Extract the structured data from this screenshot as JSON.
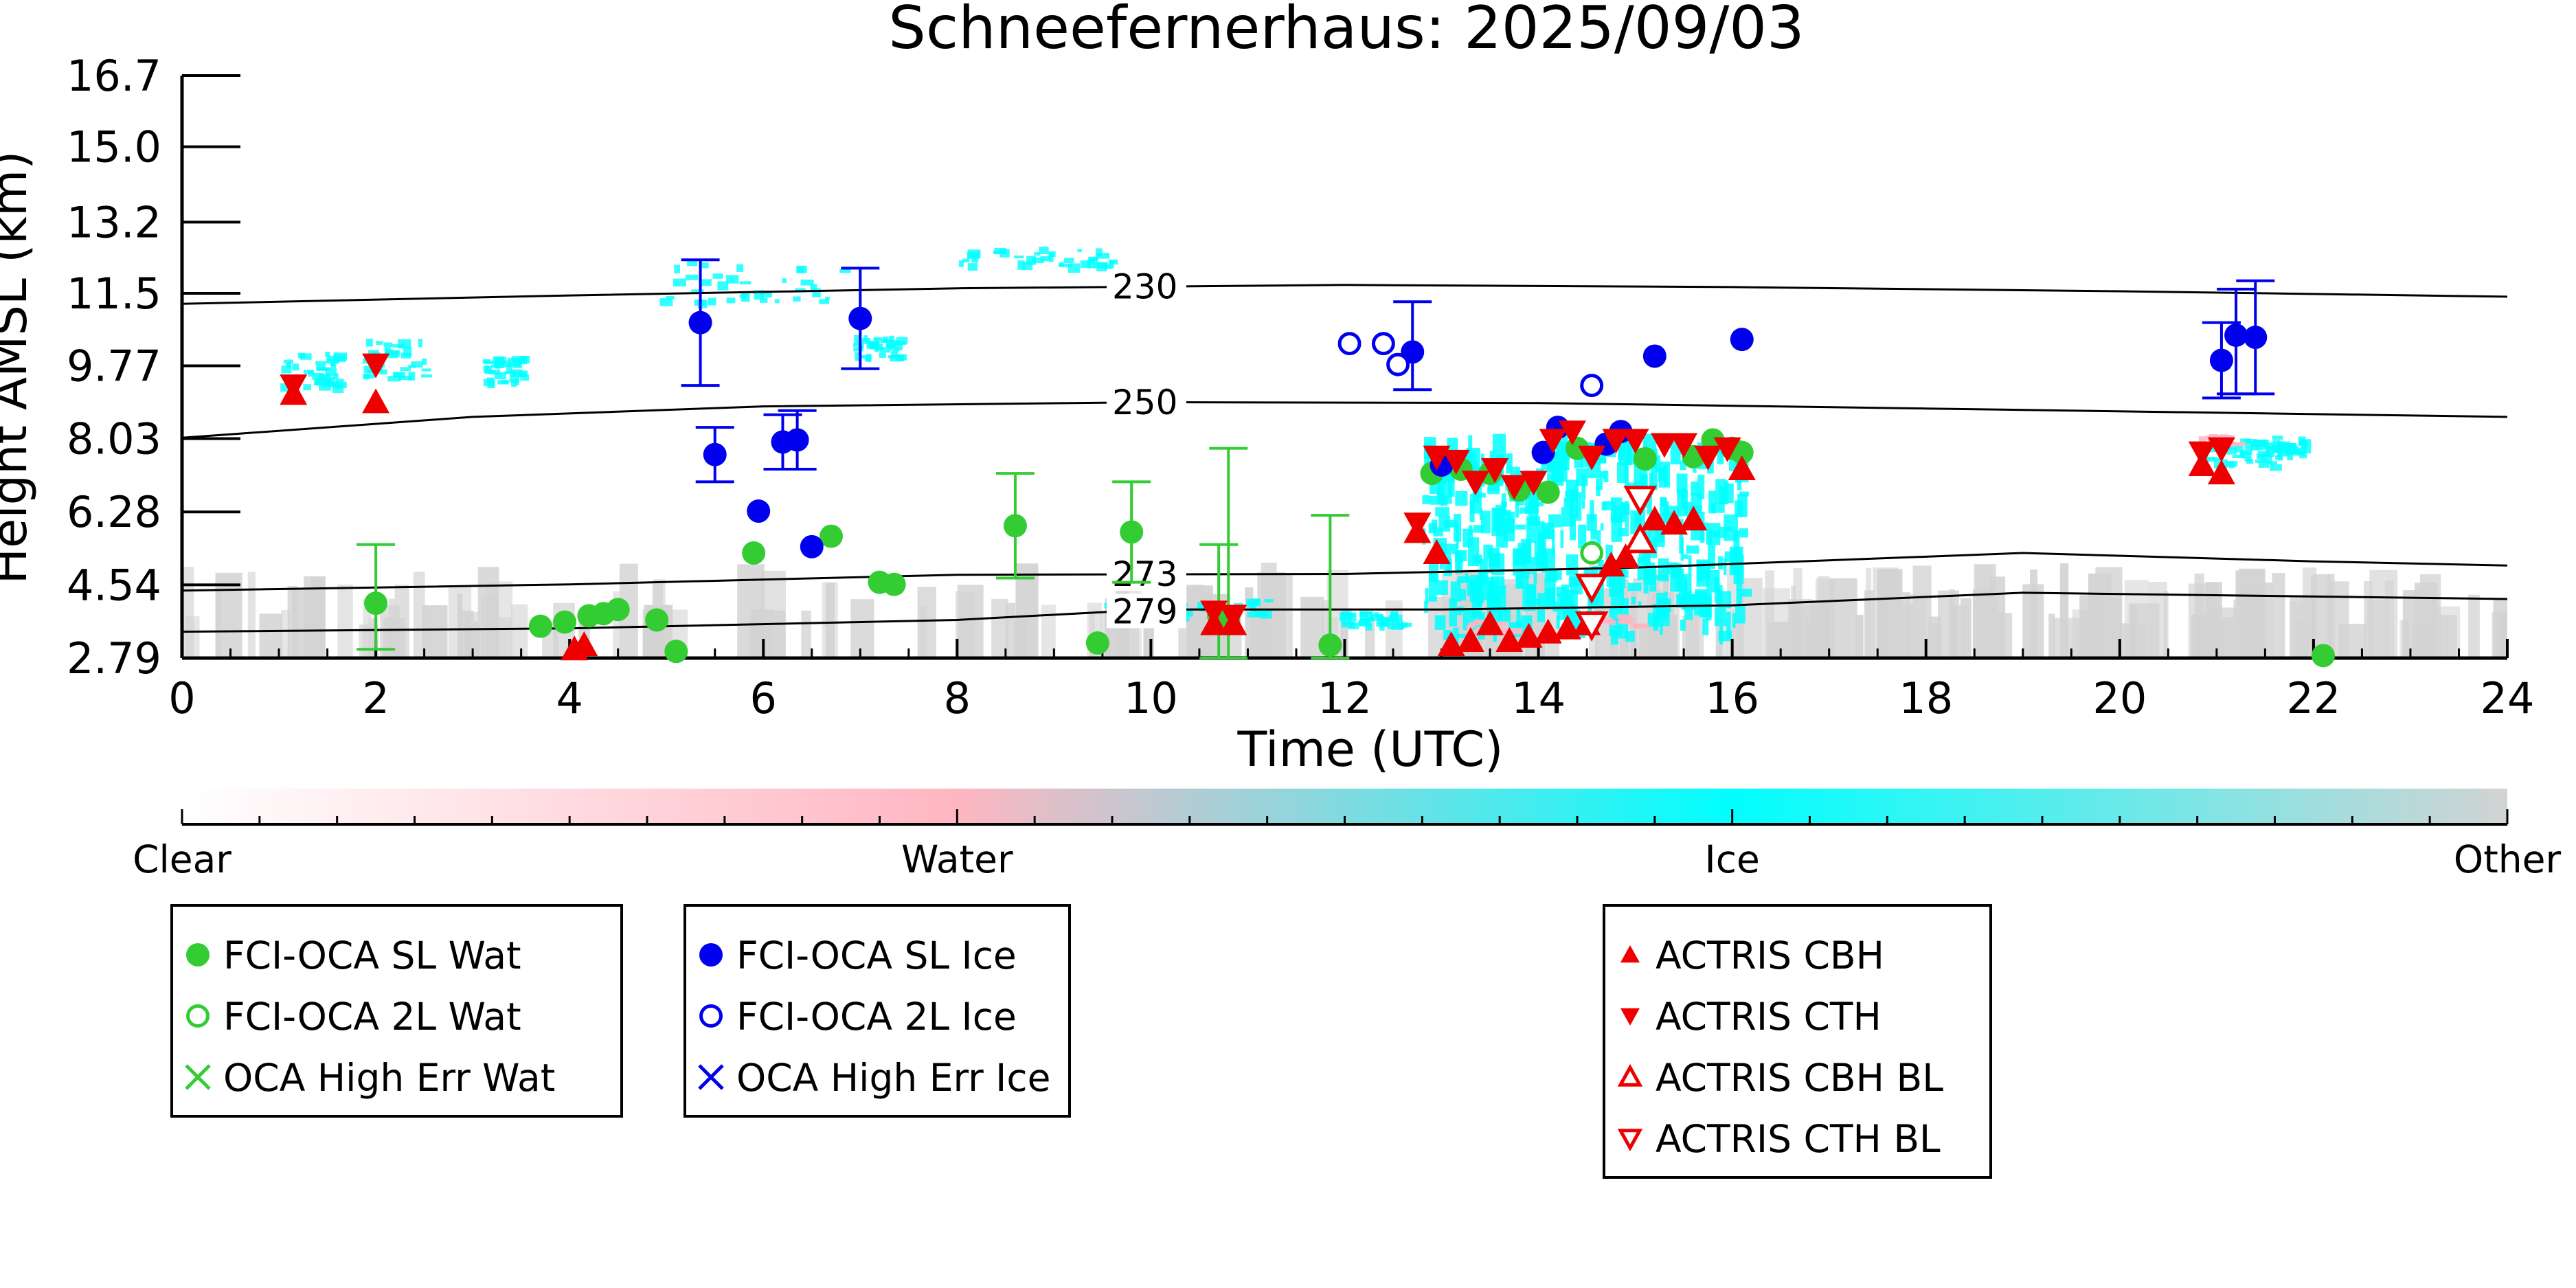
{
  "chart_data": {
    "type": "scatter",
    "title": "Schneefernerhaus: 2025/09/03",
    "xlabel": "Time (UTC)",
    "ylabel": "Height AMSL (km)",
    "xlim": [
      0,
      24
    ],
    "ylim": [
      2.79,
      16.7
    ],
    "x_ticks": [
      "0",
      "2",
      "4",
      "6",
      "8",
      "10",
      "12",
      "14",
      "16",
      "18",
      "20",
      "22",
      "24"
    ],
    "y_ticks": [
      "2.79",
      "4.54",
      "6.28",
      "8.03",
      "9.77",
      "11.5",
      "13.2",
      "15.0",
      "16.7"
    ],
    "y_tick_values": [
      2.79,
      4.54,
      6.28,
      8.03,
      9.77,
      11.5,
      13.2,
      15.0,
      16.7
    ],
    "colorbar": {
      "labels": [
        "Clear",
        "Water",
        "Ice",
        "Other"
      ],
      "colors": [
        "#ffffff",
        "#ffb6c1",
        "#00ffff",
        "#d3d3d3"
      ]
    },
    "isotherms": [
      {
        "label": "230",
        "label_x": 9.6,
        "points": [
          [
            0,
            11.25
          ],
          [
            4,
            11.45
          ],
          [
            8,
            11.62
          ],
          [
            12,
            11.7
          ],
          [
            16,
            11.65
          ],
          [
            20,
            11.55
          ],
          [
            24,
            11.42
          ]
        ]
      },
      {
        "label": "250",
        "label_x": 9.6,
        "points": [
          [
            0,
            8.05
          ],
          [
            3,
            8.55
          ],
          [
            6,
            8.8
          ],
          [
            10,
            8.9
          ],
          [
            14,
            8.88
          ],
          [
            18,
            8.75
          ],
          [
            24,
            8.55
          ]
        ]
      },
      {
        "label": "273",
        "label_x": 9.6,
        "points": [
          [
            0,
            4.4
          ],
          [
            4,
            4.55
          ],
          [
            8,
            4.78
          ],
          [
            12,
            4.8
          ],
          [
            15,
            4.95
          ],
          [
            19,
            5.3
          ],
          [
            22,
            5.1
          ],
          [
            24,
            5.0
          ]
        ]
      },
      {
        "label": "279",
        "label_x": 9.6,
        "points": [
          [
            0,
            3.42
          ],
          [
            4,
            3.5
          ],
          [
            8,
            3.7
          ],
          [
            10,
            3.95
          ],
          [
            13,
            3.95
          ],
          [
            16,
            4.05
          ],
          [
            19,
            4.35
          ],
          [
            24,
            4.2
          ]
        ]
      }
    ],
    "series": [
      {
        "name": "FCI-OCA SL Wat",
        "color": "#33cc33",
        "marker": "circle-filled",
        "points": [
          {
            "x": 2.0,
            "y": 4.1,
            "lo": 3.0,
            "hi": 5.5
          },
          {
            "x": 3.7,
            "y": 3.55
          },
          {
            "x": 3.95,
            "y": 3.65
          },
          {
            "x": 4.2,
            "y": 3.8
          },
          {
            "x": 4.35,
            "y": 3.85
          },
          {
            "x": 4.5,
            "y": 3.95
          },
          {
            "x": 4.9,
            "y": 3.7
          },
          {
            "x": 5.1,
            "y": 2.95
          },
          {
            "x": 5.9,
            "y": 5.3
          },
          {
            "x": 6.7,
            "y": 5.7
          },
          {
            "x": 7.2,
            "y": 4.6
          },
          {
            "x": 7.35,
            "y": 4.55
          },
          {
            "x": 8.6,
            "y": 5.95,
            "lo": 4.7,
            "hi": 7.2
          },
          {
            "x": 9.45,
            "y": 3.15
          },
          {
            "x": 9.8,
            "y": 5.8,
            "lo": 4.6,
            "hi": 7.0
          },
          {
            "x": 10.7,
            "y": 3.8,
            "lo": 2.79,
            "hi": 5.5
          },
          {
            "x": 10.8,
            "y": 3.7,
            "lo": 2.79,
            "hi": 7.8
          },
          {
            "x": 11.85,
            "y": 3.1,
            "lo": 2.79,
            "hi": 6.2
          },
          {
            "x": 12.9,
            "y": 7.2
          },
          {
            "x": 13.2,
            "y": 7.3
          },
          {
            "x": 13.5,
            "y": 7.2
          },
          {
            "x": 13.8,
            "y": 6.8
          },
          {
            "x": 14.1,
            "y": 6.75
          },
          {
            "x": 14.4,
            "y": 7.8
          },
          {
            "x": 15.1,
            "y": 7.55
          },
          {
            "x": 15.6,
            "y": 7.6
          },
          {
            "x": 15.8,
            "y": 8.0
          },
          {
            "x": 16.0,
            "y": 7.8
          },
          {
            "x": 16.1,
            "y": 7.7
          },
          {
            "x": 22.1,
            "y": 2.85
          }
        ]
      },
      {
        "name": "FCI-OCA 2L Wat",
        "color": "#33cc33",
        "marker": "circle-open",
        "points": [
          {
            "x": 14.55,
            "y": 5.3
          }
        ]
      },
      {
        "name": "OCA High Err Wat",
        "color": "#33cc33",
        "marker": "x",
        "points": []
      },
      {
        "name": "FCI-OCA SL Ice",
        "color": "#0000ee",
        "marker": "circle-filled",
        "points": [
          {
            "x": 5.35,
            "y": 10.8,
            "lo": 9.3,
            "hi": 12.3
          },
          {
            "x": 5.5,
            "y": 7.65,
            "lo": 7.0,
            "hi": 8.3
          },
          {
            "x": 5.95,
            "y": 6.3
          },
          {
            "x": 6.2,
            "y": 7.95,
            "lo": 7.3,
            "hi": 8.6
          },
          {
            "x": 6.35,
            "y": 8.0,
            "lo": 7.3,
            "hi": 8.7
          },
          {
            "x": 6.5,
            "y": 5.45
          },
          {
            "x": 7.0,
            "y": 10.9,
            "lo": 9.7,
            "hi": 12.1
          },
          {
            "x": 12.7,
            "y": 10.1,
            "lo": 9.2,
            "hi": 11.3
          },
          {
            "x": 13.0,
            "y": 7.4
          },
          {
            "x": 14.05,
            "y": 7.7
          },
          {
            "x": 14.2,
            "y": 8.3
          },
          {
            "x": 14.7,
            "y": 7.9
          },
          {
            "x": 14.85,
            "y": 8.2
          },
          {
            "x": 15.2,
            "y": 10.0
          },
          {
            "x": 16.1,
            "y": 10.4
          },
          {
            "x": 21.05,
            "y": 9.9,
            "lo": 9.0,
            "hi": 10.8
          },
          {
            "x": 21.2,
            "y": 10.5,
            "lo": 9.1,
            "hi": 11.6
          },
          {
            "x": 21.4,
            "y": 10.45,
            "lo": 9.1,
            "hi": 11.8
          }
        ]
      },
      {
        "name": "FCI-OCA 2L Ice",
        "color": "#0000ee",
        "marker": "circle-open",
        "points": [
          {
            "x": 12.05,
            "y": 10.3
          },
          {
            "x": 12.4,
            "y": 10.3
          },
          {
            "x": 12.55,
            "y": 9.8
          },
          {
            "x": 14.55,
            "y": 9.3
          }
        ]
      },
      {
        "name": "OCA High Err Ice",
        "color": "#0000ee",
        "marker": "x",
        "points": []
      },
      {
        "name": "ACTRIS CBH",
        "color": "#ee0000",
        "marker": "triangle-up-filled",
        "points": [
          {
            "x": 1.15,
            "y": 9.1
          },
          {
            "x": 2.0,
            "y": 8.9
          },
          {
            "x": 4.05,
            "y": 3.0
          },
          {
            "x": 4.15,
            "y": 3.1
          },
          {
            "x": 10.65,
            "y": 3.6
          },
          {
            "x": 10.85,
            "y": 3.6
          },
          {
            "x": 12.75,
            "y": 5.8
          },
          {
            "x": 12.95,
            "y": 5.3
          },
          {
            "x": 13.1,
            "y": 3.1
          },
          {
            "x": 13.3,
            "y": 3.2
          },
          {
            "x": 13.5,
            "y": 3.6
          },
          {
            "x": 13.7,
            "y": 3.2
          },
          {
            "x": 13.9,
            "y": 3.3
          },
          {
            "x": 14.1,
            "y": 3.4
          },
          {
            "x": 14.3,
            "y": 3.5
          },
          {
            "x": 14.5,
            "y": 3.6
          },
          {
            "x": 14.75,
            "y": 5.0
          },
          {
            "x": 14.9,
            "y": 5.2
          },
          {
            "x": 15.2,
            "y": 6.1
          },
          {
            "x": 15.4,
            "y": 6.0
          },
          {
            "x": 15.6,
            "y": 6.1
          },
          {
            "x": 16.1,
            "y": 7.3
          },
          {
            "x": 20.85,
            "y": 7.4
          },
          {
            "x": 21.05,
            "y": 7.2
          }
        ]
      },
      {
        "name": "ACTRIS CTH",
        "color": "#ee0000",
        "marker": "triangle-down-filled",
        "points": [
          {
            "x": 1.15,
            "y": 9.3
          },
          {
            "x": 2.0,
            "y": 9.8
          },
          {
            "x": 10.65,
            "y": 3.9
          },
          {
            "x": 10.85,
            "y": 3.8
          },
          {
            "x": 12.75,
            "y": 6.0
          },
          {
            "x": 12.95,
            "y": 7.6
          },
          {
            "x": 13.15,
            "y": 7.5
          },
          {
            "x": 13.35,
            "y": 7.0
          },
          {
            "x": 13.55,
            "y": 7.3
          },
          {
            "x": 13.75,
            "y": 6.9
          },
          {
            "x": 13.95,
            "y": 7.0
          },
          {
            "x": 14.15,
            "y": 8.0
          },
          {
            "x": 14.35,
            "y": 8.2
          },
          {
            "x": 14.55,
            "y": 7.6
          },
          {
            "x": 14.8,
            "y": 8.0
          },
          {
            "x": 15.0,
            "y": 8.0
          },
          {
            "x": 15.3,
            "y": 7.9
          },
          {
            "x": 15.5,
            "y": 7.9
          },
          {
            "x": 15.75,
            "y": 7.6
          },
          {
            "x": 15.95,
            "y": 7.8
          },
          {
            "x": 20.85,
            "y": 7.7
          },
          {
            "x": 21.05,
            "y": 7.8
          }
        ]
      },
      {
        "name": "ACTRIS CBH BL",
        "color": "#ee0000",
        "marker": "triangle-up-open",
        "points": [
          {
            "x": 15.05,
            "y": 5.6
          }
        ]
      },
      {
        "name": "ACTRIS CTH BL",
        "color": "#ee0000",
        "marker": "triangle-down-open",
        "points": [
          {
            "x": 14.55,
            "y": 4.5
          },
          {
            "x": 14.55,
            "y": 3.6
          },
          {
            "x": 15.05,
            "y": 6.6
          }
        ]
      }
    ],
    "legends": [
      {
        "entries": [
          "FCI-OCA SL Wat",
          "FCI-OCA 2L Wat",
          "OCA High Err Wat"
        ]
      },
      {
        "entries": [
          "FCI-OCA SL Ice",
          "FCI-OCA 2L Ice",
          "OCA High Err Ice"
        ]
      },
      {
        "entries": [
          "ACTRIS CBH",
          "ACTRIS CTH",
          "ACTRIS CBH BL",
          "ACTRIS CTH BL"
        ]
      }
    ]
  }
}
